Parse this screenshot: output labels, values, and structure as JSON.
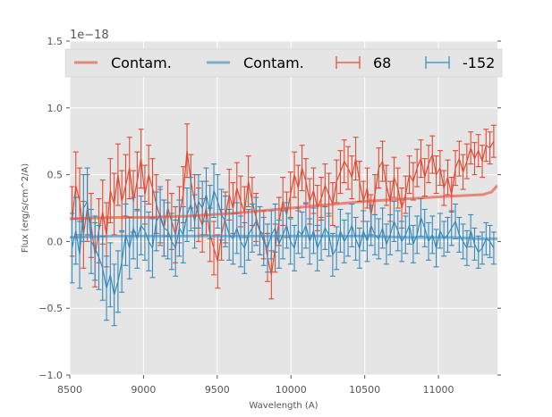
{
  "chart_data": {
    "type": "line",
    "title": "",
    "xlabel": "Wavelength (A)",
    "ylabel": "Flux (erg/s/cm^2/A)",
    "y_offset_label": "1e−18",
    "xlim": [
      8500,
      11400
    ],
    "ylim": [
      -1.0,
      1.5
    ],
    "x_ticks": [
      8500,
      9000,
      9500,
      10000,
      10500,
      11000
    ],
    "x_tick_labels": [
      "8500",
      "9000",
      "9500",
      "10000",
      "10500",
      "11000"
    ],
    "y_ticks": [
      -1.0,
      -0.5,
      0.0,
      0.5,
      1.0,
      1.5
    ],
    "y_tick_labels": [
      "−1.0",
      "−0.5",
      "0.0",
      "0.5",
      "1.0",
      "1.5"
    ],
    "grid": true,
    "legend_position": "top",
    "x_start": 8515,
    "x_step": 26,
    "series": [
      {
        "name": "68",
        "kind": "errorbar",
        "color": "#e24a33",
        "values": [
          0.15,
          0.42,
          0.3,
          0.05,
          0.25,
          0.12,
          -0.1,
          0.08,
          0.22,
          0.05,
          0.38,
          0.28,
          0.5,
          0.3,
          0.42,
          0.55,
          0.3,
          0.45,
          0.62,
          0.35,
          0.5,
          0.4,
          0.28,
          0.18,
          0.1,
          0.25,
          0.15,
          0.05,
          0.2,
          0.35,
          0.68,
          0.45,
          0.3,
          0.2,
          0.12,
          0.25,
          0.05,
          -0.05,
          -0.15,
          0.05,
          0.18,
          0.35,
          0.25,
          0.4,
          0.3,
          0.22,
          0.45,
          0.3,
          0.18,
          0.08,
          0.05,
          -0.12,
          -0.25,
          -0.05,
          0.15,
          0.3,
          0.2,
          0.35,
          0.5,
          0.4,
          0.55,
          0.45,
          0.3,
          0.38,
          0.25,
          0.32,
          0.42,
          0.35,
          0.28,
          0.45,
          0.52,
          0.6,
          0.55,
          0.48,
          0.62,
          0.45,
          0.3,
          0.4,
          0.2,
          0.35,
          0.55,
          0.6,
          0.42,
          0.3,
          0.48,
          0.4,
          0.25,
          0.35,
          0.5,
          0.45,
          0.55,
          0.62,
          0.48,
          0.58,
          0.65,
          0.5,
          0.55,
          0.4,
          0.48,
          0.35,
          0.55,
          0.62,
          0.52,
          0.6,
          0.7,
          0.62,
          0.68,
          0.6,
          0.72,
          0.7,
          0.75
        ],
        "errors": [
          0.26,
          0.25,
          0.25,
          0.25,
          0.25,
          0.24,
          0.24,
          0.24,
          0.24,
          0.24,
          0.24,
          0.23,
          0.23,
          0.23,
          0.23,
          0.23,
          0.23,
          0.22,
          0.22,
          0.22,
          0.22,
          0.22,
          0.22,
          0.21,
          0.21,
          0.21,
          0.21,
          0.21,
          0.21,
          0.21,
          0.2,
          0.2,
          0.2,
          0.2,
          0.2,
          0.2,
          0.2,
          0.2,
          0.2,
          0.19,
          0.19,
          0.19,
          0.19,
          0.19,
          0.19,
          0.19,
          0.19,
          0.18,
          0.18,
          0.18,
          0.18,
          0.18,
          0.18,
          0.18,
          0.18,
          0.18,
          0.17,
          0.17,
          0.17,
          0.17,
          0.17,
          0.17,
          0.17,
          0.17,
          0.17,
          0.16,
          0.16,
          0.16,
          0.16,
          0.16,
          0.16,
          0.16,
          0.16,
          0.16,
          0.16,
          0.15,
          0.15,
          0.15,
          0.15,
          0.15,
          0.15,
          0.15,
          0.15,
          0.15,
          0.15,
          0.15,
          0.15,
          0.14,
          0.14,
          0.14,
          0.14,
          0.14,
          0.14,
          0.14,
          0.14,
          0.14,
          0.13,
          0.13,
          0.13,
          0.13,
          0.13,
          0.13,
          0.13,
          0.13,
          0.12,
          0.12,
          0.12,
          0.12,
          0.12,
          0.12,
          0.12,
          0.12
        ]
      },
      {
        "name": "-152",
        "kind": "errorbar",
        "color": "#348abd",
        "values": [
          -0.05,
          0.08,
          -0.1,
          0.25,
          0.3,
          0.0,
          -0.05,
          -0.12,
          -0.2,
          -0.35,
          -0.25,
          -0.4,
          -0.3,
          -0.15,
          0.05,
          -0.05,
          0.1,
          0.02,
          0.12,
          0.08,
          0.0,
          -0.05,
          0.15,
          0.2,
          0.1,
          0.08,
          0.0,
          -0.05,
          0.1,
          0.05,
          0.2,
          0.28,
          0.15,
          0.3,
          0.25,
          0.35,
          0.22,
          0.38,
          0.3,
          0.2,
          0.15,
          0.05,
          0.02,
          0.1,
          0.0,
          -0.05,
          0.05,
          0.1,
          0.15,
          0.08,
          0.0,
          -0.05,
          0.05,
          0.1,
          -0.02,
          0.05,
          0.12,
          0.0,
          -0.05,
          0.08,
          0.05,
          0.12,
          0.0,
          0.08,
          -0.05,
          0.02,
          0.1,
          0.05,
          -0.1,
          -0.05,
          0.08,
          0.0,
          0.05,
          0.12,
          0.02,
          -0.05,
          0.08,
          0.0,
          0.12,
          0.05,
          0.02,
          0.1,
          -0.02,
          0.05,
          0.15,
          0.08,
          0.0,
          0.05,
          0.12,
          -0.02,
          0.05,
          0.18,
          0.1,
          0.0,
          0.05,
          -0.05,
          0.08,
          0.02,
          0.05,
          0.1,
          0.15,
          0.05,
          0.0,
          -0.05,
          0.08,
          -0.02,
          -0.08,
          -0.05,
          0.02,
          0.0,
          -0.05
        ],
        "errors": [
          0.26,
          0.25,
          0.25,
          0.25,
          0.25,
          0.24,
          0.24,
          0.24,
          0.24,
          0.24,
          0.24,
          0.23,
          0.23,
          0.23,
          0.23,
          0.23,
          0.23,
          0.22,
          0.22,
          0.22,
          0.22,
          0.22,
          0.22,
          0.21,
          0.21,
          0.21,
          0.21,
          0.21,
          0.21,
          0.21,
          0.2,
          0.2,
          0.2,
          0.2,
          0.2,
          0.2,
          0.2,
          0.2,
          0.2,
          0.19,
          0.19,
          0.19,
          0.19,
          0.19,
          0.19,
          0.19,
          0.19,
          0.18,
          0.18,
          0.18,
          0.18,
          0.18,
          0.18,
          0.18,
          0.18,
          0.18,
          0.17,
          0.17,
          0.17,
          0.17,
          0.17,
          0.17,
          0.17,
          0.17,
          0.17,
          0.16,
          0.16,
          0.16,
          0.16,
          0.16,
          0.16,
          0.16,
          0.16,
          0.16,
          0.16,
          0.15,
          0.15,
          0.15,
          0.15,
          0.15,
          0.15,
          0.15,
          0.15,
          0.15,
          0.15,
          0.15,
          0.15,
          0.14,
          0.14,
          0.14,
          0.14,
          0.14,
          0.14,
          0.14,
          0.14,
          0.14,
          0.13,
          0.13,
          0.13,
          0.13,
          0.13,
          0.13,
          0.13,
          0.13,
          0.12,
          0.12,
          0.12,
          0.12,
          0.12,
          0.12,
          0.12,
          0.12
        ]
      },
      {
        "name": "Contam.",
        "kind": "line",
        "color": "#e24a33",
        "x": [
          8500,
          8800,
          9000,
          9300,
          9600,
          9900,
          10200,
          10500,
          10800,
          11100,
          11300,
          11360,
          11400
        ],
        "values": [
          0.17,
          0.18,
          0.18,
          0.19,
          0.21,
          0.24,
          0.27,
          0.3,
          0.32,
          0.34,
          0.35,
          0.37,
          0.42
        ]
      },
      {
        "name": "Contam.",
        "kind": "line",
        "color": "#348abd",
        "x": [
          8500,
          8800,
          9000,
          9300,
          9600,
          9900,
          10200,
          10500,
          10800,
          11100,
          11300,
          11400
        ],
        "values": [
          0.03,
          0.04,
          0.04,
          0.04,
          0.04,
          0.04,
          0.04,
          0.04,
          0.03,
          0.03,
          0.02,
          0.02
        ]
      }
    ],
    "legend": [
      {
        "label": "Contam.",
        "marker": "line",
        "color": "#e24a33"
      },
      {
        "label": "Contam.",
        "marker": "line",
        "color": "#348abd"
      },
      {
        "label": "68",
        "marker": "errorbar",
        "color": "#e24a33"
      },
      {
        "label": "-152",
        "marker": "errorbar",
        "color": "#348abd"
      }
    ]
  }
}
